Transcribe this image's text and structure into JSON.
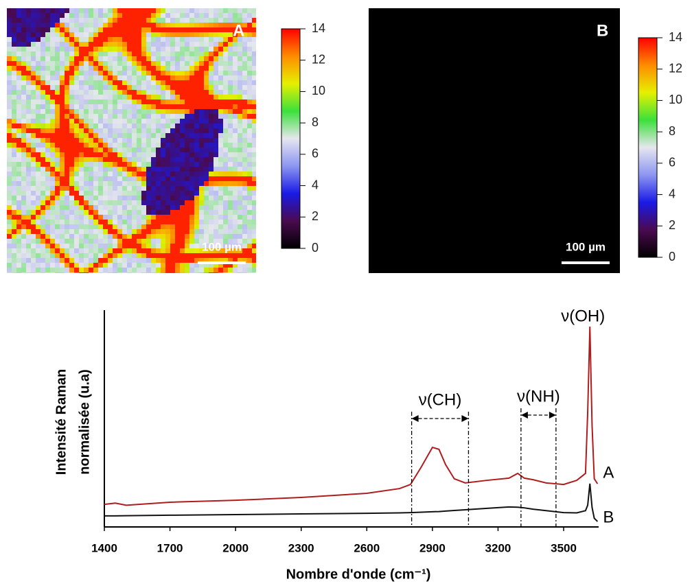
{
  "chart_data": [
    {
      "type": "heatmap",
      "label": "A",
      "scale_bar": "100 µm",
      "texture": true,
      "background": "#b8bff0",
      "colormap": [
        "#000000",
        "#4a0a50",
        "#1a1ae6",
        "#8c96f0",
        "#e6e6ee",
        "#3ce03c",
        "#e6f000",
        "#ff8c00",
        "#ff0000"
      ],
      "clim": [
        0,
        14
      ],
      "cticks": [
        0,
        2,
        4,
        6,
        8,
        10,
        12,
        14
      ]
    },
    {
      "type": "heatmap",
      "label": "B",
      "scale_bar": "100 µm",
      "texture": false,
      "background": "#000000",
      "colormap": [
        "#000000",
        "#4a0a50",
        "#1a1ae6",
        "#8c96f0",
        "#e6e6ee",
        "#3ce03c",
        "#e6f000",
        "#ff8c00",
        "#ff0000"
      ],
      "clim": [
        0,
        14
      ],
      "cticks": [
        0,
        2,
        4,
        6,
        8,
        10,
        12,
        14
      ]
    },
    {
      "type": "line",
      "xlabel": "Nombre d'onde (cm⁻¹)",
      "ylabel": [
        "Intensité Raman",
        "normalisée (u.a)"
      ],
      "x": [
        1400,
        1450,
        1500,
        1700,
        2000,
        2300,
        2600,
        2750,
        2800,
        2850,
        2900,
        2930,
        2960,
        3000,
        3050,
        3150,
        3250,
        3290,
        3320,
        3360,
        3420,
        3500,
        3560,
        3600,
        3610,
        3620,
        3630,
        3640,
        3655
      ],
      "series": [
        {
          "name": "A",
          "color": "#b01c1c",
          "values": [
            10.4,
            11,
            10,
            11.4,
            12.3,
            13.6,
            15.5,
            17.7,
            19.6,
            27.8,
            36.7,
            35.8,
            28.8,
            22.2,
            20.3,
            21.5,
            22.5,
            24.7,
            22.5,
            21.8,
            20.3,
            19.6,
            21.5,
            24.7,
            53,
            92.4,
            46.8,
            22.2,
            19.9
          ]
        },
        {
          "name": "B",
          "color": "#111111",
          "values": [
            5.1,
            5.1,
            5.2,
            5.4,
            5.7,
            6.0,
            6.3,
            6.5,
            6.6,
            6.8,
            7.0,
            7.1,
            7.3,
            7.6,
            7.9,
            8.6,
            9.2,
            9.1,
            8.8,
            8.2,
            7.5,
            6.6,
            6.5,
            7.5,
            10,
            20,
            9,
            4,
            2.5
          ]
        }
      ],
      "xlim": [
        1400,
        3660
      ],
      "ylim": [
        0,
        100
      ],
      "xticks": [
        1400,
        1700,
        2000,
        2300,
        2600,
        2900,
        3200,
        3500
      ],
      "ranges": [
        {
          "label": "ν(CH)",
          "x": [
            2805,
            3065
          ]
        },
        {
          "label": "ν(NH)",
          "x": [
            3305,
            3465
          ]
        }
      ],
      "peaks": [
        {
          "label": "ν(OH)",
          "x": 3620
        }
      ]
    }
  ]
}
